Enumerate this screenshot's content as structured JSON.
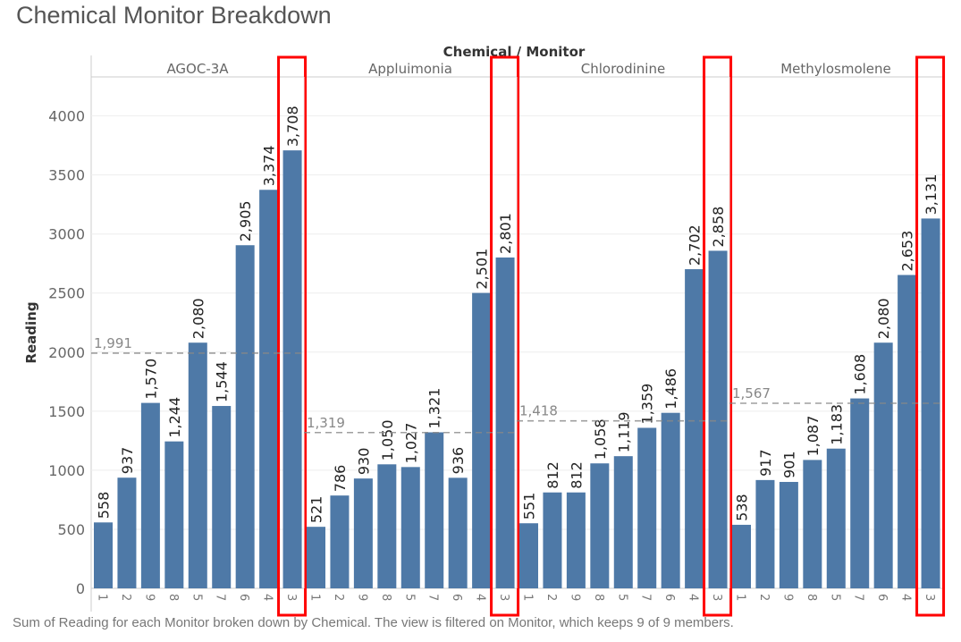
{
  "title": "Chemical Monitor Breakdown",
  "footer": "Sum of Reading for each Monitor broken down by Chemical. The view is filtered on Monitor, which keeps 9 of 9 members.",
  "colors": {
    "bar": "#4e79a7",
    "highlight": "#ff0000",
    "refline": "#999999"
  },
  "chart_data": {
    "type": "bar",
    "title": "Chemical Monitor Breakdown",
    "column_header": "Chemical / Monitor",
    "ylabel": "Reading",
    "ylim": [
      0,
      4330
    ],
    "yticks": [
      0,
      500,
      1000,
      1500,
      2000,
      2500,
      3000,
      3500,
      4000
    ],
    "grid": true,
    "monitors": [
      "1",
      "2",
      "9",
      "8",
      "5",
      "7",
      "6",
      "4",
      "3"
    ],
    "highlighted_monitor": "3",
    "panels": [
      {
        "chemical": "AGOC-3A",
        "values": [
          558,
          937,
          1570,
          1244,
          2080,
          1544,
          2905,
          3374,
          3708
        ],
        "labels": [
          "558",
          "937",
          "1,570",
          "1,244",
          "2,080",
          "1,544",
          "2,905",
          "3,374",
          "3,708"
        ],
        "average": 1991,
        "average_label": "1,991"
      },
      {
        "chemical": "Appluimonia",
        "values": [
          521,
          786,
          930,
          1050,
          1027,
          1321,
          936,
          2501,
          2801
        ],
        "labels": [
          "521",
          "786",
          "930",
          "1,050",
          "1,027",
          "1,321",
          "936",
          "2,501",
          "2,801"
        ],
        "average": 1319,
        "average_label": "1,319"
      },
      {
        "chemical": "Chlorodinine",
        "values": [
          551,
          812,
          812,
          1058,
          1119,
          1359,
          1486,
          2702,
          2858
        ],
        "labels": [
          "551",
          "812",
          "812",
          "1,058",
          "1,119",
          "1,359",
          "1,486",
          "2,702",
          "2,858"
        ],
        "average": 1418,
        "average_label": "1,418"
      },
      {
        "chemical": "Methylosmolene",
        "values": [
          538,
          917,
          901,
          1087,
          1183,
          1608,
          2080,
          2653,
          3131
        ],
        "labels": [
          "538",
          "917",
          "901",
          "1,087",
          "1,183",
          "1,608",
          "2,080",
          "2,653",
          "3,131"
        ],
        "average": 1567,
        "average_label": "1,567"
      }
    ]
  }
}
